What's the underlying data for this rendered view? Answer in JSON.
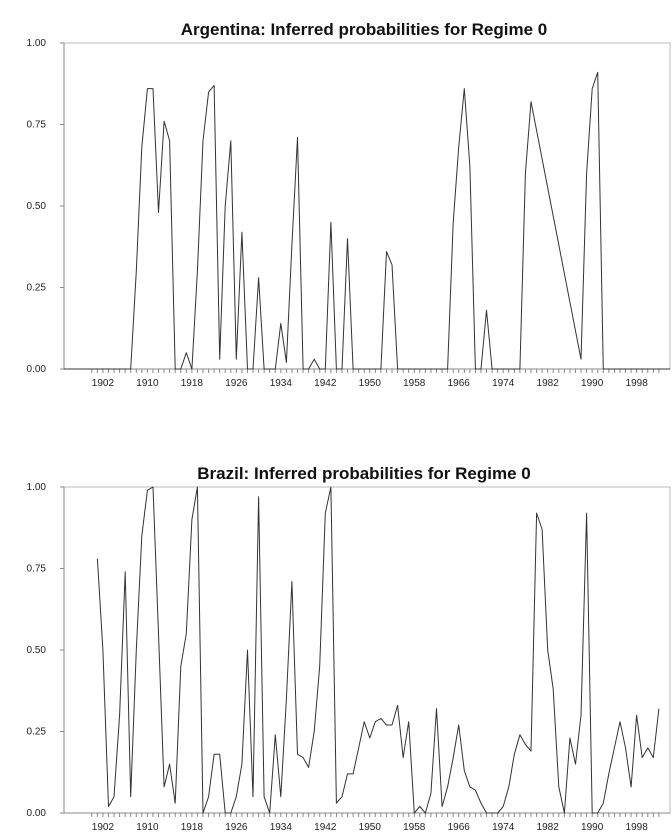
{
  "chart_data": [
    {
      "type": "line",
      "title": "Argentina: Inferred probabilities for Regime 0",
      "xlabel": "",
      "ylabel": "",
      "ylim": [
        0,
        1
      ],
      "xlim": [
        1895,
        2004
      ],
      "yticks": [
        "0.00",
        "0.25",
        "0.50",
        "0.75",
        "1.00"
      ],
      "xticks": [
        "1902",
        "1910",
        "1918",
        "1926",
        "1934",
        "1942",
        "1950",
        "1958",
        "1966",
        "1974",
        "1982",
        "1990",
        "1998"
      ],
      "grid": false,
      "x": [
        1895,
        1907,
        1908,
        1909,
        1910,
        1911,
        1912,
        1913,
        1914,
        1915,
        1916,
        1917,
        1918,
        1919,
        1920,
        1921,
        1922,
        1923,
        1924,
        1925,
        1926,
        1927,
        1928,
        1929,
        1930,
        1931,
        1932,
        1933,
        1934,
        1935,
        1936,
        1937,
        1938,
        1939,
        1940,
        1941,
        1942,
        1943,
        1944,
        1945,
        1946,
        1947,
        1952,
        1953,
        1954,
        1955,
        1964,
        1965,
        1966,
        1967,
        1968,
        1969,
        1970,
        1971,
        1972,
        1973,
        1976,
        1977,
        1978,
        1979,
        1988,
        1989,
        1990,
        1991,
        1992,
        1993,
        1994,
        1995,
        1996,
        1997,
        2004
      ],
      "values": [
        0.0,
        0.0,
        0.3,
        0.68,
        0.86,
        0.86,
        0.48,
        0.76,
        0.7,
        0.0,
        0.0,
        0.05,
        0.0,
        0.3,
        0.7,
        0.85,
        0.87,
        0.03,
        0.5,
        0.7,
        0.03,
        0.42,
        0.0,
        0.0,
        0.28,
        0.0,
        0.0,
        0.0,
        0.14,
        0.02,
        0.38,
        0.71,
        0.0,
        0.0,
        0.03,
        0.0,
        0.0,
        0.45,
        0.0,
        0.0,
        0.4,
        0.0,
        0.0,
        0.36,
        0.32,
        0.0,
        0.0,
        0.45,
        0.68,
        0.86,
        0.62,
        0.0,
        0.0,
        0.18,
        0.0,
        0.0,
        0.0,
        0.0,
        0.6,
        0.82,
        0.03,
        0.6,
        0.86,
        0.91,
        0.0,
        0.0,
        0.0,
        0.0,
        0.0,
        0.0,
        0.0
      ]
    },
    {
      "type": "line",
      "title": "Brazil: Inferred probabilities for Regime 0",
      "xlabel": "",
      "ylabel": "",
      "ylim": [
        0,
        1
      ],
      "xlim": [
        1895,
        2004
      ],
      "yticks": [
        "0.00",
        "0.25",
        "0.50",
        "0.75",
        "1.00"
      ],
      "xticks": [
        "1902",
        "1910",
        "1918",
        "1926",
        "1934",
        "1942",
        "1950",
        "1958",
        "1966",
        "1974",
        "1982",
        "1990",
        "1998"
      ],
      "grid": false,
      "x": [
        1901,
        1902,
        1903,
        1904,
        1905,
        1906,
        1907,
        1908,
        1909,
        1910,
        1911,
        1912,
        1913,
        1914,
        1915,
        1916,
        1917,
        1918,
        1919,
        1920,
        1921,
        1922,
        1923,
        1924,
        1925,
        1926,
        1927,
        1928,
        1929,
        1930,
        1931,
        1932,
        1933,
        1934,
        1935,
        1936,
        1937,
        1938,
        1939,
        1940,
        1941,
        1942,
        1943,
        1944,
        1945,
        1946,
        1947,
        1948,
        1949,
        1950,
        1951,
        1952,
        1953,
        1954,
        1955,
        1956,
        1957,
        1958,
        1959,
        1960,
        1961,
        1962,
        1963,
        1964,
        1965,
        1966,
        1967,
        1968,
        1969,
        1970,
        1971,
        1972,
        1973,
        1974,
        1975,
        1976,
        1977,
        1978,
        1979,
        1980,
        1981,
        1982,
        1983,
        1984,
        1985,
        1986,
        1987,
        1988,
        1989,
        1990,
        1991,
        1992,
        1993,
        1994,
        1995,
        1996,
        1997,
        1998,
        1999,
        2000,
        2001,
        2002
      ],
      "values": [
        0.78,
        0.5,
        0.02,
        0.05,
        0.3,
        0.74,
        0.05,
        0.5,
        0.85,
        0.99,
        1.0,
        0.55,
        0.08,
        0.15,
        0.03,
        0.45,
        0.55,
        0.9,
        1.0,
        0.0,
        0.05,
        0.18,
        0.18,
        0.0,
        0.0,
        0.05,
        0.15,
        0.5,
        0.05,
        0.97,
        0.05,
        0.0,
        0.24,
        0.05,
        0.35,
        0.71,
        0.18,
        0.17,
        0.14,
        0.25,
        0.45,
        0.92,
        1.0,
        0.03,
        0.05,
        0.12,
        0.12,
        0.2,
        0.28,
        0.23,
        0.28,
        0.29,
        0.27,
        0.27,
        0.33,
        0.17,
        0.28,
        0.0,
        0.02,
        0.0,
        0.06,
        0.32,
        0.02,
        0.08,
        0.17,
        0.27,
        0.13,
        0.08,
        0.07,
        0.03,
        0.0,
        0.0,
        0.0,
        0.02,
        0.08,
        0.18,
        0.24,
        0.21,
        0.19,
        0.92,
        0.87,
        0.5,
        0.38,
        0.08,
        0.0,
        0.23,
        0.15,
        0.3,
        0.92,
        0.0,
        0.0,
        0.03,
        0.12,
        0.2,
        0.28,
        0.2,
        0.08,
        0.3,
        0.17,
        0.2,
        0.17,
        0.32
      ]
    }
  ]
}
